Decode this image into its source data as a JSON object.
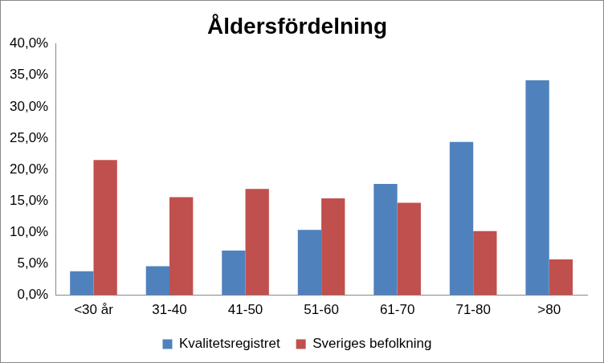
{
  "chart_data": {
    "type": "bar",
    "title": "Åldersfördelning",
    "categories": [
      "<30 år",
      "31-40",
      "41-50",
      "51-60",
      "61-70",
      "71-80",
      ">80"
    ],
    "series": [
      {
        "name": "Kvalitetsregistret",
        "color": "#4f81bd",
        "values": [
          3.8,
          4.6,
          7.1,
          10.4,
          17.7,
          24.4,
          34.2
        ]
      },
      {
        "name": "Sveriges befolkning",
        "color": "#c0504d",
        "values": [
          21.5,
          15.6,
          16.9,
          15.4,
          14.7,
          10.2,
          5.7
        ]
      }
    ],
    "ylim": [
      0,
      40
    ],
    "yticks": [
      {
        "value": 0,
        "label": "0,0%"
      },
      {
        "value": 5,
        "label": "5,0%"
      },
      {
        "value": 10,
        "label": "10,0%"
      },
      {
        "value": 15,
        "label": "15,0%"
      },
      {
        "value": 20,
        "label": "20,0%"
      },
      {
        "value": 25,
        "label": "25,0%"
      },
      {
        "value": 30,
        "label": "30,0%"
      },
      {
        "value": 35,
        "label": "35,0%"
      },
      {
        "value": 40,
        "label": "40,0%"
      }
    ],
    "grid": false,
    "legend": "bottom"
  }
}
